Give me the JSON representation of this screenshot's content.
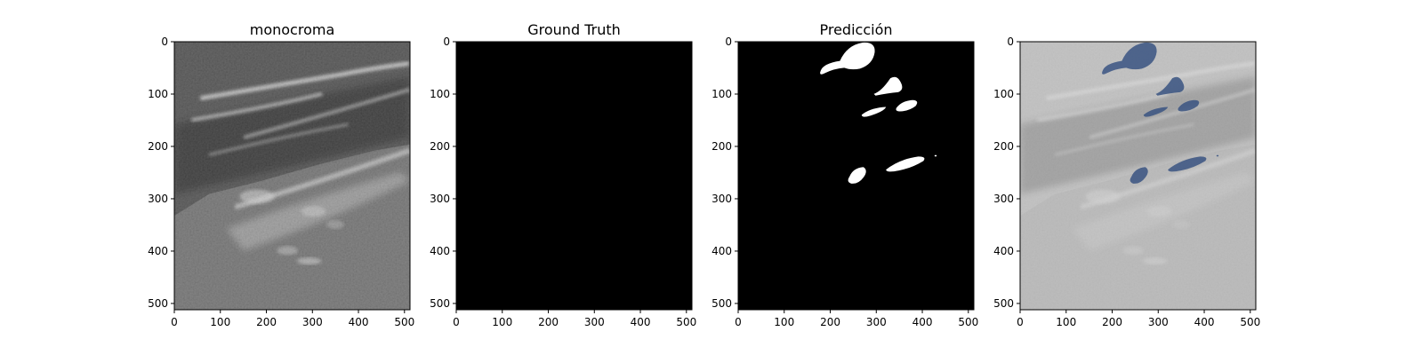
{
  "panels": [
    {
      "id": "monochrome",
      "title": "monocroma",
      "kind": "ultrasound"
    },
    {
      "id": "ground-truth",
      "title": "Ground Truth",
      "kind": "mask-empty"
    },
    {
      "id": "prediction",
      "title": "Predicción",
      "kind": "mask-prediction"
    },
    {
      "id": "overlay",
      "title": "",
      "kind": "overlay"
    }
  ],
  "axes": {
    "x_ticks": [
      "0",
      "100",
      "200",
      "300",
      "400",
      "500"
    ],
    "y_ticks": [
      "0",
      "100",
      "200",
      "300",
      "400",
      "500"
    ],
    "x_range": [
      0,
      512
    ],
    "y_range": [
      0,
      512
    ]
  },
  "colors": {
    "mask": "#ffffff",
    "mask_background": "#000000",
    "overlay_fill": "#3a5482",
    "figure_background": "#ffffff"
  }
}
